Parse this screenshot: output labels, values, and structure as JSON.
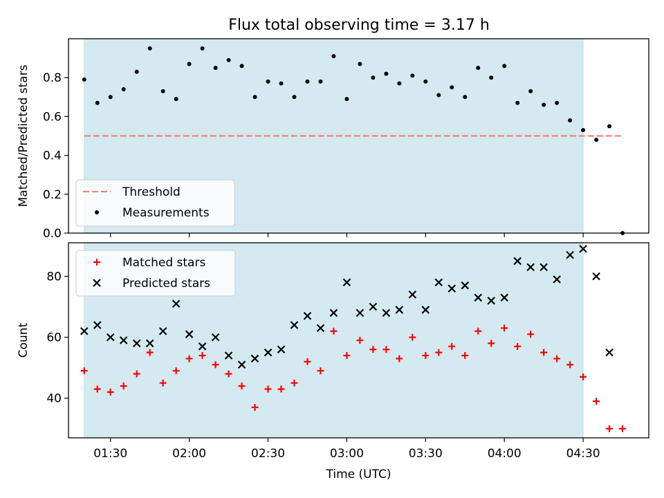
{
  "title": "Flux total observing time = 3.17 h",
  "chart_data": [
    {
      "type": "scatter",
      "panel": "top",
      "ylabel": "Matched/Predicted stars",
      "xlabel": "",
      "xlim": [
        "01:14",
        "04:55"
      ],
      "ylim": [
        0,
        1.0
      ],
      "x_ticks": [
        "01:30",
        "02:00",
        "02:30",
        "03:00",
        "03:30",
        "04:00",
        "04:30"
      ],
      "y_ticks": [
        0.0,
        0.2,
        0.4,
        0.6,
        0.8
      ],
      "y_tick_labels": [
        "0.0",
        "0.2",
        "0.4",
        "0.6",
        "0.8"
      ],
      "shaded_interval": [
        "01:20",
        "04:30"
      ],
      "shade_color": "#d4eaf0",
      "threshold": {
        "name": "Threshold",
        "y": 0.5,
        "x_range": [
          "01:20",
          "04:45"
        ],
        "color": "#f08080"
      },
      "legend": {
        "placement": "lower left",
        "entries": [
          "Threshold",
          "Measurements"
        ]
      },
      "series": [
        {
          "name": "Measurements",
          "marker": "dot",
          "color": "#000000",
          "x": [
            "01:20",
            "01:25",
            "01:30",
            "01:35",
            "01:40",
            "01:45",
            "01:50",
            "01:55",
            "02:00",
            "02:05",
            "02:10",
            "02:15",
            "02:20",
            "02:25",
            "02:30",
            "02:35",
            "02:40",
            "02:45",
            "02:50",
            "02:55",
            "03:00",
            "03:05",
            "03:10",
            "03:15",
            "03:20",
            "03:25",
            "03:30",
            "03:35",
            "03:40",
            "03:45",
            "03:50",
            "03:55",
            "04:00",
            "04:05",
            "04:10",
            "04:15",
            "04:20",
            "04:25",
            "04:30",
            "04:35",
            "04:40",
            "04:45"
          ],
          "values": [
            0.79,
            0.67,
            0.7,
            0.74,
            0.83,
            0.95,
            0.73,
            0.69,
            0.87,
            0.95,
            0.85,
            0.89,
            0.86,
            0.7,
            0.78,
            0.77,
            0.7,
            0.78,
            0.78,
            0.91,
            0.69,
            0.87,
            0.8,
            0.82,
            0.77,
            0.81,
            0.78,
            0.71,
            0.75,
            0.7,
            0.85,
            0.8,
            0.86,
            0.67,
            0.73,
            0.66,
            0.67,
            0.58,
            0.53,
            0.48,
            0.55,
            0.0
          ]
        }
      ]
    },
    {
      "type": "scatter",
      "panel": "bottom",
      "ylabel": "Count",
      "xlabel": "Time (UTC)",
      "xlim": [
        "01:14",
        "04:55"
      ],
      "ylim": [
        27,
        91
      ],
      "x_ticks": [
        "01:30",
        "02:00",
        "02:30",
        "03:00",
        "03:30",
        "04:00",
        "04:30"
      ],
      "y_ticks": [
        40,
        60,
        80
      ],
      "y_tick_labels": [
        "40",
        "60",
        "80"
      ],
      "shaded_interval": [
        "01:20",
        "04:30"
      ],
      "shade_color": "#d4eaf0",
      "legend": {
        "placement": "top-left",
        "entries": [
          "Matched stars",
          "Predicted stars"
        ]
      },
      "series": [
        {
          "name": "Matched stars",
          "marker": "plus",
          "color": "#ff0000",
          "x": [
            "01:20",
            "01:25",
            "01:30",
            "01:35",
            "01:40",
            "01:45",
            "01:50",
            "01:55",
            "02:00",
            "02:05",
            "02:10",
            "02:15",
            "02:20",
            "02:25",
            "02:30",
            "02:35",
            "02:40",
            "02:45",
            "02:50",
            "02:55",
            "03:00",
            "03:05",
            "03:10",
            "03:15",
            "03:20",
            "03:25",
            "03:30",
            "03:35",
            "03:40",
            "03:45",
            "03:50",
            "03:55",
            "04:00",
            "04:05",
            "04:10",
            "04:15",
            "04:20",
            "04:25",
            "04:30",
            "04:35",
            "04:40",
            "04:45"
          ],
          "values": [
            49,
            43,
            42,
            44,
            48,
            55,
            45,
            49,
            53,
            54,
            51,
            48,
            44,
            37,
            43,
            43,
            45,
            52,
            49,
            62,
            54,
            59,
            56,
            56,
            53,
            60,
            54,
            55,
            57,
            54,
            62,
            58,
            63,
            57,
            61,
            55,
            53,
            51,
            47,
            39,
            30,
            30
          ]
        },
        {
          "name": "Predicted stars",
          "marker": "x",
          "color": "#000000",
          "x": [
            "01:20",
            "01:25",
            "01:30",
            "01:35",
            "01:40",
            "01:45",
            "01:50",
            "01:55",
            "02:00",
            "02:05",
            "02:10",
            "02:15",
            "02:20",
            "02:25",
            "02:30",
            "02:35",
            "02:40",
            "02:45",
            "02:50",
            "02:55",
            "03:00",
            "03:05",
            "03:10",
            "03:15",
            "03:20",
            "03:25",
            "03:30",
            "03:35",
            "03:40",
            "03:45",
            "03:50",
            "03:55",
            "04:00",
            "04:05",
            "04:10",
            "04:15",
            "04:20",
            "04:25",
            "04:30",
            "04:35",
            "04:40"
          ],
          "values": [
            62,
            64,
            60,
            59,
            58,
            58,
            62,
            71,
            61,
            57,
            60,
            54,
            51,
            53,
            55,
            56,
            64,
            67,
            63,
            68,
            78,
            68,
            70,
            68,
            69,
            74,
            69,
            78,
            76,
            77,
            73,
            72,
            73,
            85,
            83,
            83,
            79,
            87,
            89,
            80,
            55
          ]
        }
      ]
    }
  ]
}
